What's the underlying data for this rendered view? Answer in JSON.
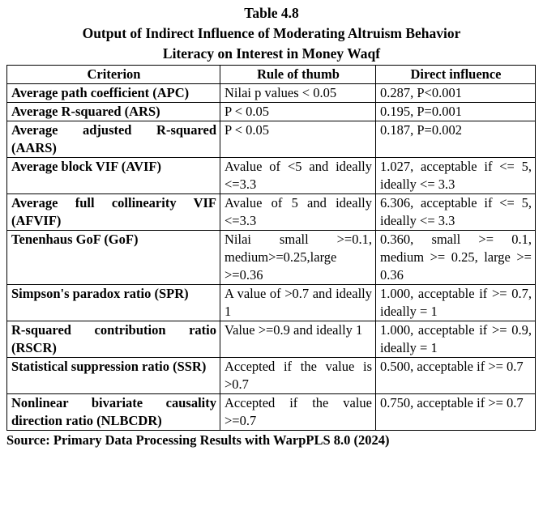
{
  "caption": {
    "table_number": "Table 4.8",
    "line1": "Output of Indirect Influence of Moderating Altruism Behavior",
    "line2": "Literacy on Interest in Money Waqf"
  },
  "table": {
    "headers": [
      "Criterion",
      "Rule of thumb",
      "Direct influence"
    ],
    "rows": [
      {
        "criterion": "Average path coefficient (APC)",
        "rule": "Nilai p values < 0.05",
        "influence": "0.287, P<0.001"
      },
      {
        "criterion": "Average R-squared (ARS)",
        "rule": "P < 0.05",
        "influence": "0.195, P=0.001"
      },
      {
        "criterion": "Average adjusted R-squared (AARS)",
        "rule": "P < 0.05",
        "influence": "0.187, P=0.002"
      },
      {
        "criterion": "Average block VIF (AVIF)",
        "rule": "Avalue of <5 and ideally <=3.3",
        "influence": "1.027, acceptable if <= 5, ideally <= 3.3"
      },
      {
        "criterion": "Average full collinearity VIF (AFVIF)",
        "rule": "Avalue of 5 and ideally <=3.3",
        "influence": "6.306, acceptable if <= 5, ideally <= 3.3"
      },
      {
        "criterion": "Tenenhaus GoF (GoF)",
        "rule": "Nilai small >=0.1, medium>=0.25,large >=0.36",
        "influence": "0.360, small >= 0.1, medium >= 0.25, large >= 0.36"
      },
      {
        "criterion": "Simpson's paradox ratio (SPR)",
        "rule": "A value of >0.7 and ideally 1",
        "influence": "1.000, acceptable if >= 0.7, ideally = 1"
      },
      {
        "criterion": "R-squared contribution ratio (RSCR)",
        "rule": "Value >=0.9 and ideally 1",
        "influence": "1.000, acceptable if >= 0.9, ideally = 1"
      },
      {
        "criterion": "Statistical suppression ratio (SSR)",
        "rule": "Accepted if the value is >0.7",
        "influence": "0.500, acceptable if >= 0.7"
      },
      {
        "criterion": "Nonlinear bivariate causality direction ratio (NLBCDR)",
        "rule": "Accepted if the value >=0.7",
        "influence": "0.750, acceptable if >= 0.7"
      }
    ]
  },
  "source": "Source: Primary Data Processing Results with WarpPLS 8.0 (2024)"
}
